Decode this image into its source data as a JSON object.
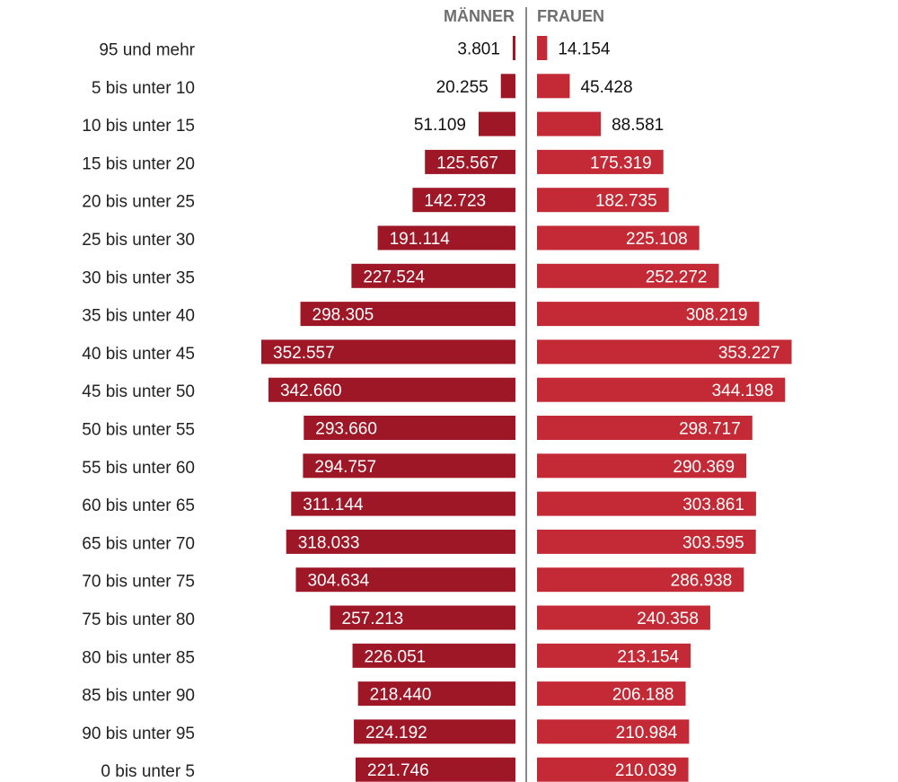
{
  "chart_data": {
    "type": "bar",
    "orientation": "horizontal-diverging",
    "headers": {
      "left": "MÄNNER",
      "right": "FRAUEN"
    },
    "categories": [
      "95 und mehr",
      "5 bis unter 10",
      "10 bis unter 15",
      "15 bis unter 20",
      "20 bis unter 25",
      "25 bis unter 30",
      "30 bis unter 35",
      "35 bis unter 40",
      "40 bis unter 45",
      "45 bis unter 50",
      "50 bis unter 55",
      "55 bis unter 60",
      "60 bis unter 65",
      "65 bis unter 70",
      "70 bis unter 75",
      "75 bis unter 80",
      "80 bis unter 85",
      "85 bis unter 90",
      "90 bis unter 95",
      "0 bis unter 5"
    ],
    "series": [
      {
        "name": "MÄNNER",
        "color": "#9e1727",
        "values": [
          3801,
          20255,
          51109,
          125567,
          142723,
          191114,
          227524,
          298305,
          352557,
          342660,
          293660,
          294757,
          311144,
          318033,
          304634,
          257213,
          226051,
          218440,
          224192,
          221746
        ],
        "labels": [
          "3.801",
          "20.255",
          "51.109",
          "125.567",
          "142.723",
          "191.114",
          "227.524",
          "298.305",
          "352.557",
          "342.660",
          "293.660",
          "294.757",
          "311.144",
          "318.033",
          "304.634",
          "257.213",
          "226.051",
          "218.440",
          "224.192",
          "221.746"
        ]
      },
      {
        "name": "FRAUEN",
        "color": "#c42a35",
        "values": [
          14154,
          45428,
          88581,
          175319,
          182735,
          225108,
          252272,
          308219,
          353227,
          344198,
          298717,
          290369,
          303861,
          303595,
          286938,
          240358,
          213154,
          206188,
          210984,
          210039
        ],
        "labels": [
          "14.154",
          "45.428",
          "88.581",
          "175.319",
          "182.735",
          "225.108",
          "252.272",
          "308.219",
          "353.227",
          "344.198",
          "298.717",
          "290.369",
          "303.861",
          "303.595",
          "286.938",
          "240.358",
          "213.154",
          "206.188",
          "210.984",
          "210.039"
        ]
      }
    ],
    "xlim": [
      0,
      360000
    ],
    "divider_color": "#888888"
  }
}
